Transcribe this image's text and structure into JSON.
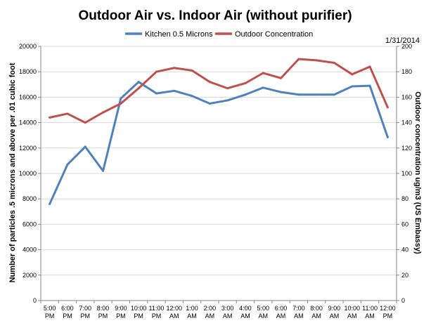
{
  "chart_data": {
    "type": "line",
    "title": "Outdoor Air vs. Indoor Air (without purifier)",
    "annotation": "1/31/2014",
    "categories": [
      [
        "5:00",
        "PM"
      ],
      [
        "6:00",
        "PM"
      ],
      [
        "7:00",
        "PM"
      ],
      [
        "8:00",
        "PM"
      ],
      [
        "9:00",
        "PM"
      ],
      [
        "10:00",
        "PM"
      ],
      [
        "11:00",
        "PM"
      ],
      [
        "12:00",
        "AM"
      ],
      [
        "1:00",
        "AM"
      ],
      [
        "2:00",
        "AM"
      ],
      [
        "3:00",
        "AM"
      ],
      [
        "4:00",
        "AM"
      ],
      [
        "5:00",
        "AM"
      ],
      [
        "6:00",
        "AM"
      ],
      [
        "7:00",
        "AM"
      ],
      [
        "8:00",
        "AM"
      ],
      [
        "9:00",
        "AM"
      ],
      [
        "10:00",
        "AM"
      ],
      [
        "11:00",
        "AM"
      ],
      [
        "12:00",
        "PM"
      ]
    ],
    "y_left": {
      "label": "Number of particles .5 microns and above per .01 cubic foot",
      "lim": [
        0,
        20000
      ],
      "ticks": [
        0,
        2000,
        4000,
        6000,
        8000,
        10000,
        12000,
        14000,
        16000,
        18000,
        20000
      ]
    },
    "y_right": {
      "label": "Outdoor concentration ug/m3 (US Embassy)",
      "lim": [
        0,
        200
      ],
      "ticks": [
        0,
        20,
        40,
        60,
        80,
        100,
        120,
        140,
        160,
        180,
        200
      ]
    },
    "grid": true,
    "legend_position": "top",
    "series": [
      {
        "name": "Kitchen 0.5 Microns",
        "axis": "left",
        "color": "#4F81BD",
        "values": [
          7600,
          10700,
          12100,
          10200,
          15900,
          17200,
          16300,
          16500,
          16100,
          15500,
          15750,
          16200,
          16750,
          16400,
          16200,
          16200,
          16200,
          16850,
          16900,
          12850
        ]
      },
      {
        "name": "Outdoor Concentration",
        "axis": "right",
        "color": "#C0504D",
        "values": [
          144,
          147,
          140,
          148,
          155,
          167,
          180,
          183,
          181,
          172,
          167,
          171,
          179,
          175,
          190,
          189,
          187,
          178,
          184,
          152
        ]
      }
    ]
  }
}
